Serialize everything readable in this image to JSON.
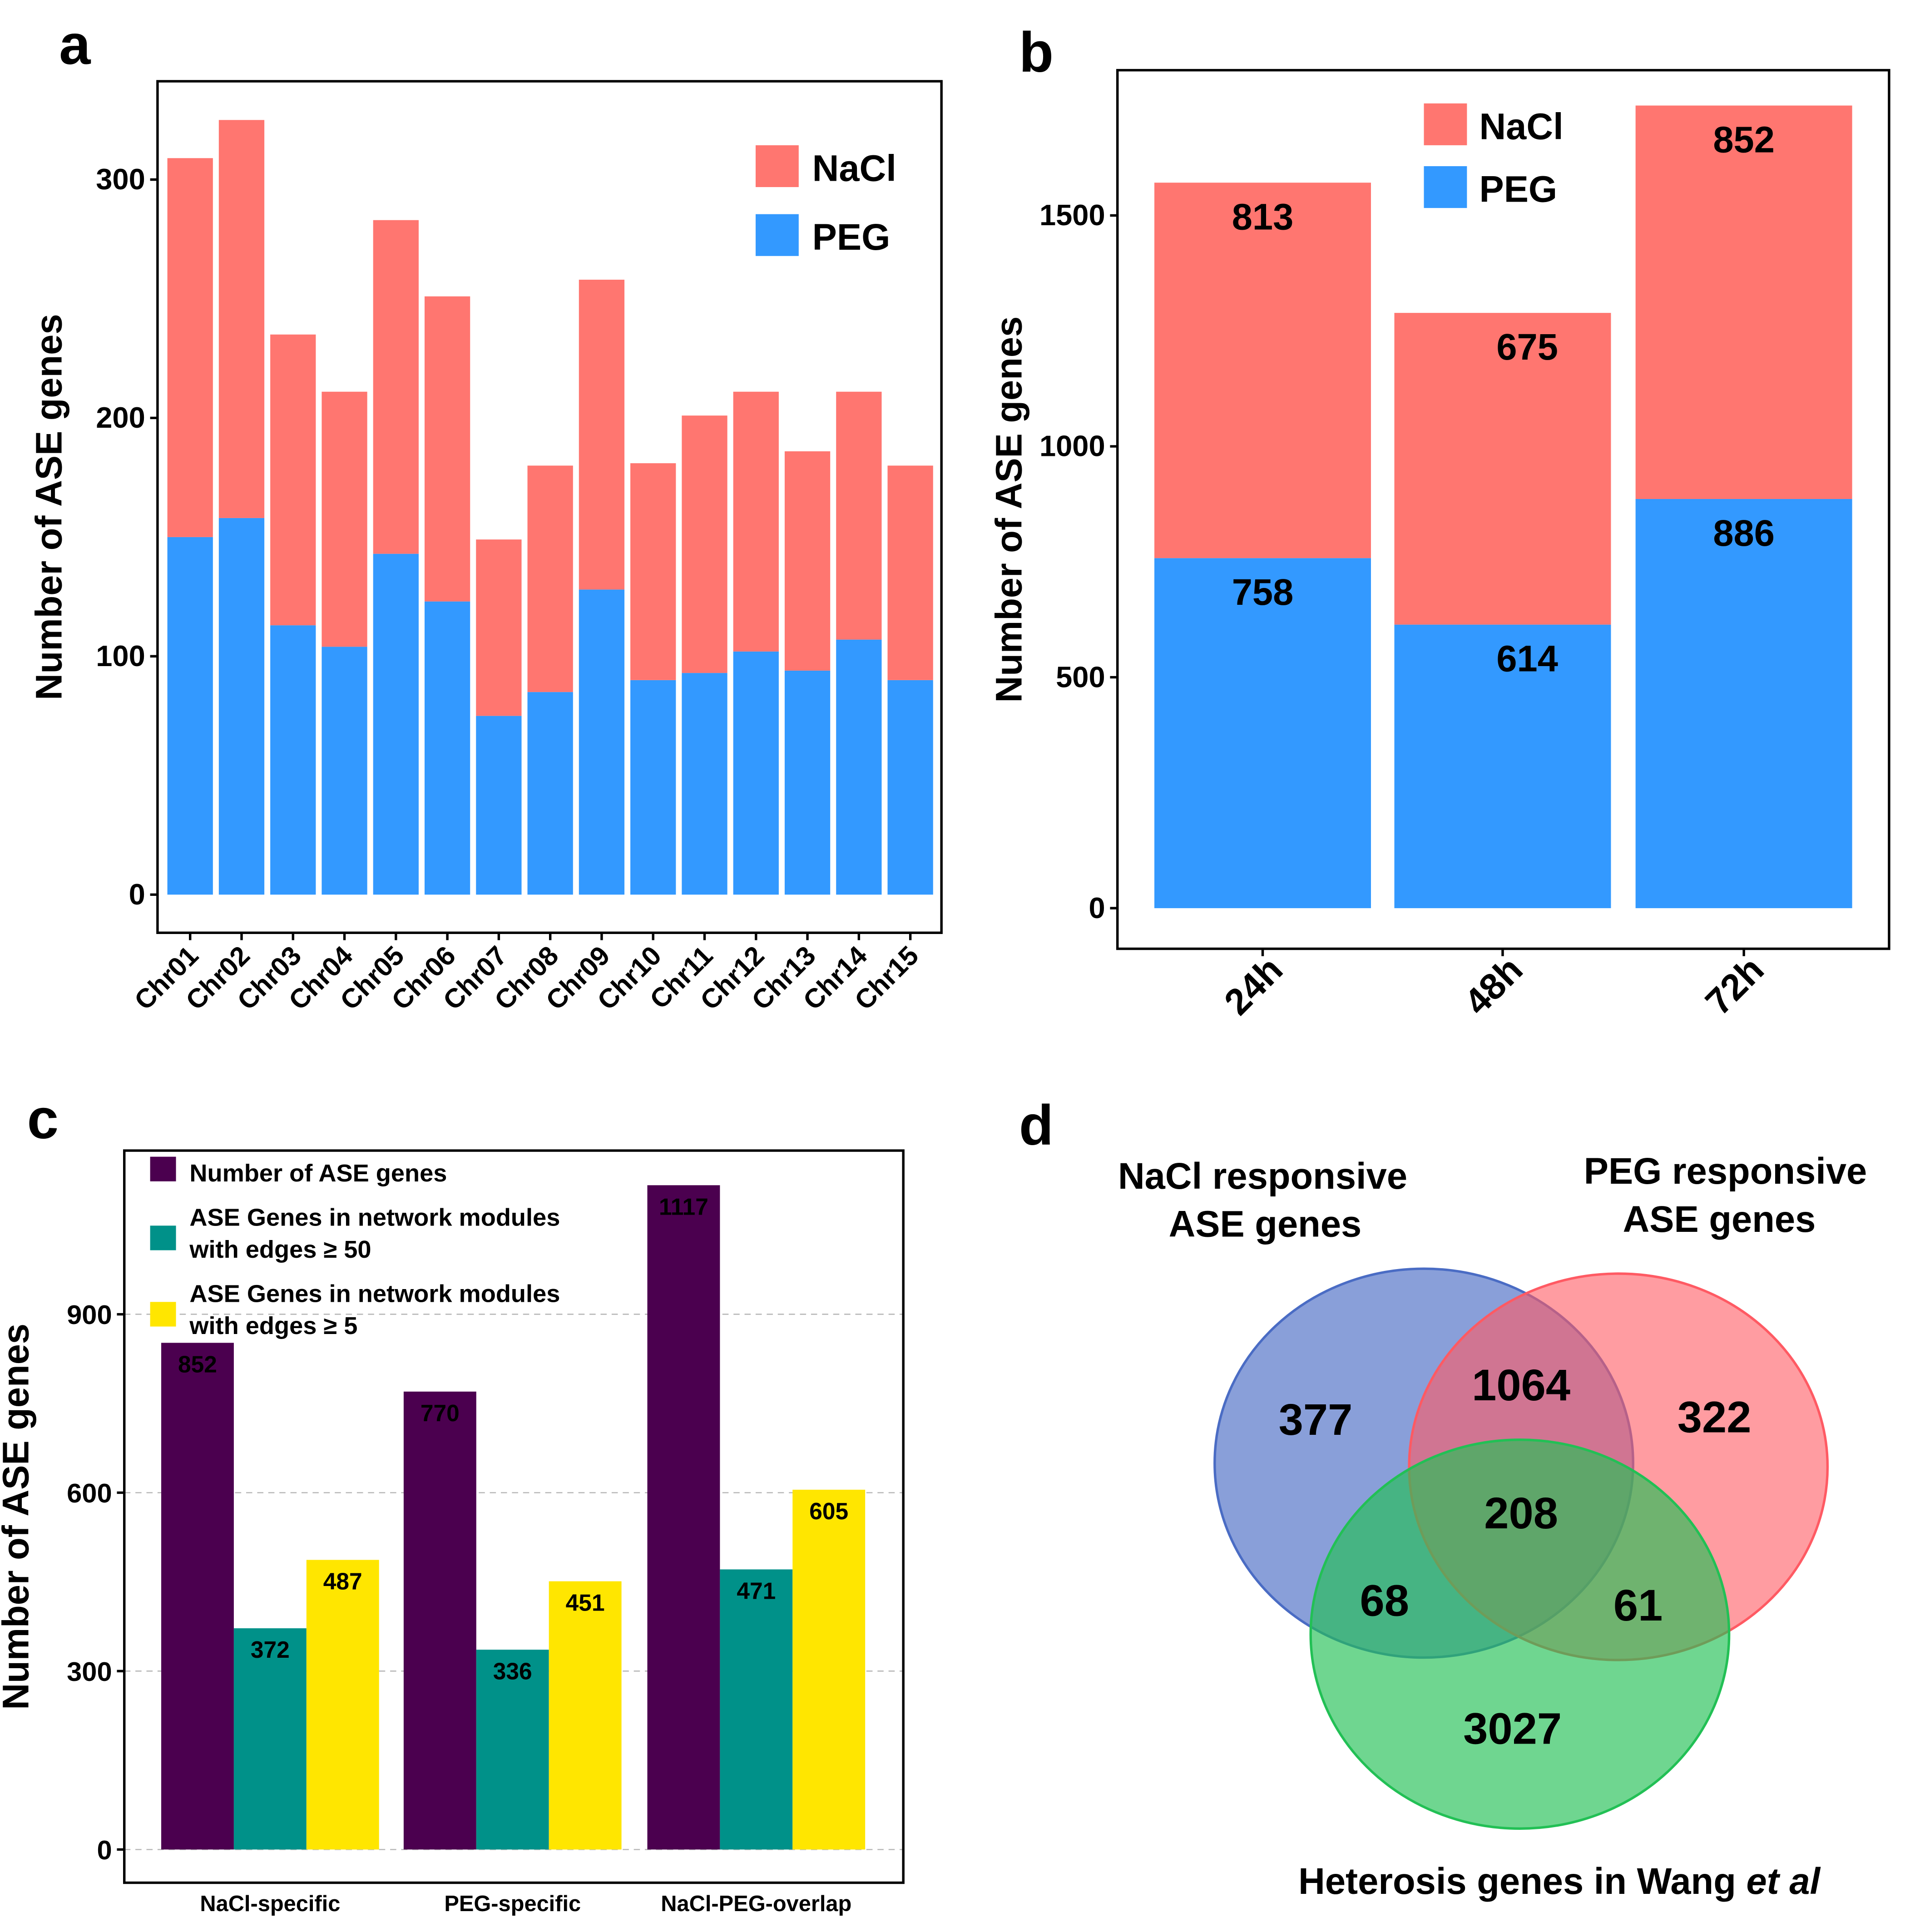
{
  "colors": {
    "nacl": "#ff7670",
    "peg": "#3399ff",
    "purple": "#4b004f",
    "teal": "#009189",
    "yellow": "#ffe600",
    "venn_blue": "#4a6cc4",
    "venn_red": "#ff5a63",
    "venn_green": "#22c055"
  },
  "chart_data": [
    {
      "panel": "a",
      "type": "bar",
      "stacked": true,
      "ylabel": "Number of ASE genes",
      "ylim": [
        0,
        335
      ],
      "yticks": [
        0,
        100,
        200,
        300
      ],
      "categories": [
        "Chr01",
        "Chr02",
        "Chr03",
        "Chr04",
        "Chr05",
        "Chr06",
        "Chr07",
        "Chr08",
        "Chr09",
        "Chr10",
        "Chr11",
        "Chr12",
        "Chr13",
        "Chr14",
        "Chr15"
      ],
      "series": [
        {
          "name": "PEG",
          "values": [
            150,
            158,
            113,
            104,
            143,
            123,
            75,
            85,
            128,
            90,
            93,
            102,
            94,
            107,
            90
          ]
        },
        {
          "name": "NaCl",
          "values": [
            159,
            167,
            122,
            107,
            140,
            128,
            74,
            95,
            130,
            91,
            108,
            109,
            92,
            104,
            90
          ]
        }
      ],
      "legend": "top-right"
    },
    {
      "panel": "b",
      "type": "bar",
      "stacked": true,
      "ylabel": "Number of ASE genes",
      "ylim": [
        0,
        1780
      ],
      "yticks": [
        0,
        500,
        1000,
        1500
      ],
      "categories": [
        "24h",
        "48h",
        "72h"
      ],
      "series": [
        {
          "name": "PEG",
          "values": [
            758,
            614,
            886
          ]
        },
        {
          "name": "NaCl",
          "values": [
            813,
            675,
            852
          ]
        }
      ],
      "legend": "top-center"
    },
    {
      "panel": "c",
      "type": "bar",
      "ylabel": "Number of ASE genes",
      "ylim": [
        0,
        1200
      ],
      "yticks": [
        0,
        300,
        600,
        900
      ],
      "grid": true,
      "categories": [
        "NaCl-specific",
        "PEG-specific",
        "NaCl-PEG-overlap"
      ],
      "series": [
        {
          "name": "Number of ASE genes",
          "values": [
            852,
            770,
            1117
          ]
        },
        {
          "name": "ASE Genes in network modules|with edges ≥ 50",
          "values": [
            372,
            336,
            471
          ]
        },
        {
          "name": "ASE Genes in network modules|with edges ≥ 5",
          "values": [
            487,
            451,
            605
          ]
        }
      ],
      "legend": "top-left"
    }
  ],
  "venn": {
    "sets": [
      "NaCl responsive|ASE genes",
      "PEG responsive|ASE genes",
      "Heterosis genes in Wang |et al"
    ],
    "regions": {
      "nacl_only": "377",
      "peg_only": "322",
      "heterosis_only": "3027",
      "nacl_peg": "1064",
      "nacl_heterosis": "68",
      "peg_heterosis": "61",
      "all": "208"
    }
  },
  "panel_labels": [
    "a",
    "b",
    "c",
    "d"
  ]
}
